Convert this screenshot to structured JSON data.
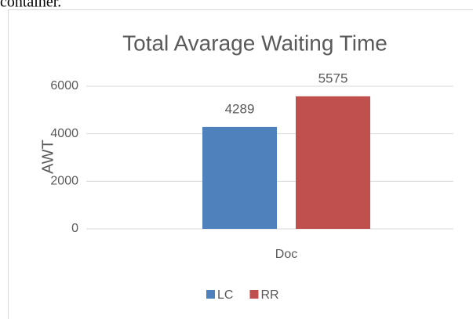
{
  "caption_fragment": "container.",
  "chart_data": {
    "type": "bar",
    "title": "Total Avarage Waiting Time",
    "y_label": "AWT",
    "categories": [
      "Doc"
    ],
    "series": [
      {
        "name": "LC",
        "color": "#4f81bd",
        "values": [
          4289
        ]
      },
      {
        "name": "RR",
        "color": "#c0504d",
        "values": [
          5575
        ]
      }
    ],
    "ylim": [
      0,
      6000
    ],
    "yticks": [
      0,
      2000,
      4000,
      6000
    ],
    "grid": true,
    "legend": "bottom",
    "data_labels": true
  }
}
